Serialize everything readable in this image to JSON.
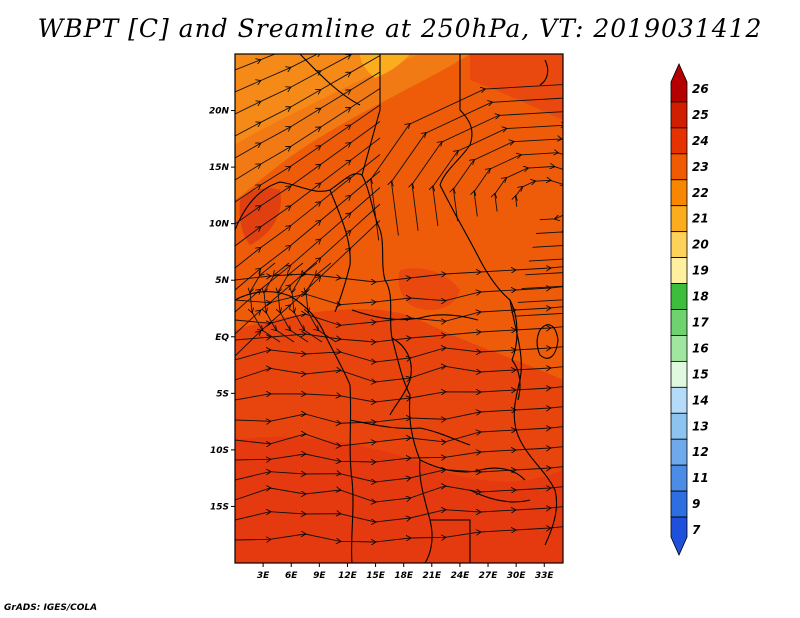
{
  "title": "WBPT [C] and Sreamline at 250hPa, VT: 2019031412",
  "credit": "GrADS: IGES/COLA",
  "map": {
    "lon_range": [
      0,
      35
    ],
    "lat_range": [
      -20,
      25
    ],
    "lat_ticks": [
      {
        "value": 20,
        "label": "20N"
      },
      {
        "value": 15,
        "label": "15N"
      },
      {
        "value": 10,
        "label": "10N"
      },
      {
        "value": 5,
        "label": "5N"
      },
      {
        "value": 0,
        "label": "EQ"
      },
      {
        "value": -5,
        "label": "5S"
      },
      {
        "value": -10,
        "label": "10S"
      },
      {
        "value": -15,
        "label": "15S"
      }
    ],
    "lon_ticks": [
      {
        "value": 3,
        "label": "3E"
      },
      {
        "value": 6,
        "label": "6E"
      },
      {
        "value": 9,
        "label": "9E"
      },
      {
        "value": 12,
        "label": "12E"
      },
      {
        "value": 15,
        "label": "15E"
      },
      {
        "value": 18,
        "label": "18E"
      },
      {
        "value": 21,
        "label": "21E"
      },
      {
        "value": 24,
        "label": "24E"
      },
      {
        "value": 27,
        "label": "27E"
      },
      {
        "value": 30,
        "label": "30E"
      },
      {
        "value": 33,
        "label": "33E"
      }
    ]
  },
  "colorbar": {
    "labels": [
      "26",
      "25",
      "24",
      "23",
      "22",
      "21",
      "20",
      "19",
      "18",
      "17",
      "16",
      "15",
      "14",
      "13",
      "12",
      "11",
      "9",
      "7"
    ],
    "colors": [
      "#b40000",
      "#d21e00",
      "#e63200",
      "#f05a00",
      "#f78700",
      "#fbad1e",
      "#fdd25a",
      "#fff0a0",
      "#3cbe3c",
      "#6ed26e",
      "#a0e6a0",
      "#e0f8e0",
      "#b4dcf8",
      "#8cc3f0",
      "#6eaaeb",
      "#4b8ce6",
      "#2d6ee1",
      "#1e50dc"
    ]
  }
}
